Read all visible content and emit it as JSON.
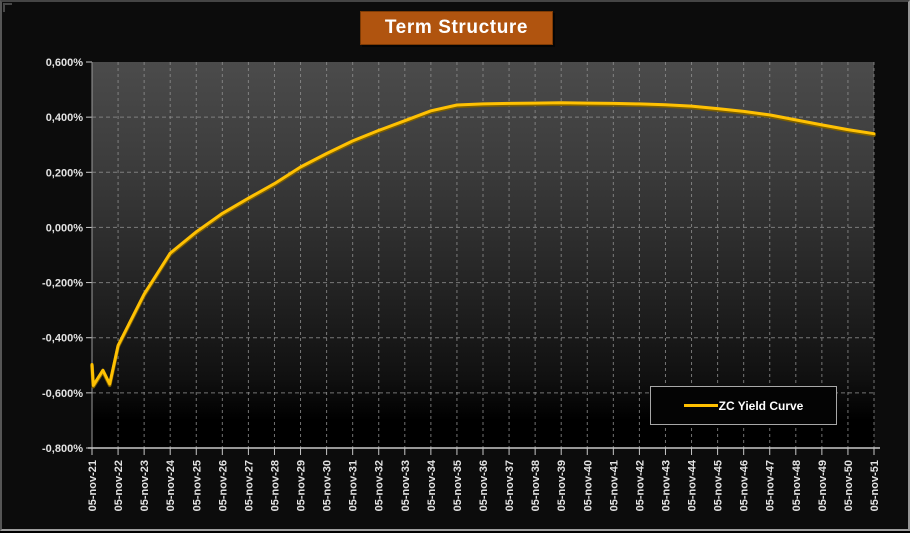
{
  "window": {
    "title": "Term Structure"
  },
  "legend": {
    "label": "ZC Yield Curve"
  },
  "colors": {
    "title_bg": "#b0540f",
    "title_text": "#ffffff",
    "curve": "#ffc103",
    "curve_shade": "#7d5f00",
    "plot_gradient_top": "#4b4b4b",
    "plot_gradient_bottom": "#000000",
    "grid": "#8f8f8f",
    "axis": "#c8c8c8",
    "tick_label": "#e3e3e3",
    "page_bg": "#0c0c0c",
    "legend_bg": "#040404",
    "legend_border": "#a8a8a8"
  },
  "chart_data": {
    "type": "line",
    "title": "Term Structure",
    "xlabel": "",
    "ylabel": "",
    "ylim": [
      -0.8,
      0.6
    ],
    "x_span_years": [
      0,
      30
    ],
    "grid": "dashed, both axes",
    "legend_position": "inside bottom-right",
    "y_ticks": [
      {
        "value": 0.6,
        "label": "0,600%"
      },
      {
        "value": 0.4,
        "label": "0,400%"
      },
      {
        "value": 0.2,
        "label": "0,200%"
      },
      {
        "value": 0.0,
        "label": "0,000%"
      },
      {
        "value": -0.2,
        "label": "-0,200%"
      },
      {
        "value": -0.4,
        "label": "-0,400%"
      },
      {
        "value": -0.6,
        "label": "-0,600%"
      },
      {
        "value": -0.8,
        "label": "-0,800%"
      }
    ],
    "x_tick_labels": [
      "05-nov-21",
      "05-nov-22",
      "05-nov-23",
      "05-nov-24",
      "05-nov-25",
      "05-nov-26",
      "05-nov-27",
      "05-nov-28",
      "05-nov-29",
      "05-nov-30",
      "05-nov-31",
      "05-nov-32",
      "05-nov-33",
      "05-nov-34",
      "05-nov-35",
      "05-nov-36",
      "05-nov-37",
      "05-nov-38",
      "05-nov-39",
      "05-nov-40",
      "05-nov-41",
      "05-nov-42",
      "05-nov-43",
      "05-nov-44",
      "05-nov-45",
      "05-nov-46",
      "05-nov-47",
      "05-nov-48",
      "05-nov-49",
      "05-nov-50",
      "05-nov-51"
    ],
    "series": [
      {
        "name": "ZC Yield Curve",
        "color": "#ffc103",
        "units": "percent",
        "points_years_vs_pct": [
          [
            0,
            -0.497
          ],
          [
            0.05,
            -0.573
          ],
          [
            0.42,
            -0.518
          ],
          [
            0.68,
            -0.568
          ],
          [
            1,
            -0.428
          ],
          [
            2,
            -0.242
          ],
          [
            3,
            -0.093
          ],
          [
            4,
            -0.016
          ],
          [
            5,
            0.051
          ],
          [
            6,
            0.106
          ],
          [
            7,
            0.159
          ],
          [
            8,
            0.219
          ],
          [
            9,
            0.268
          ],
          [
            10,
            0.314
          ],
          [
            11,
            0.352
          ],
          [
            12,
            0.387
          ],
          [
            13,
            0.423
          ],
          [
            14,
            0.444
          ],
          [
            15,
            0.448
          ],
          [
            16,
            0.45
          ],
          [
            17,
            0.451
          ],
          [
            18,
            0.452
          ],
          [
            19,
            0.451
          ],
          [
            20,
            0.45
          ],
          [
            21,
            0.448
          ],
          [
            22,
            0.445
          ],
          [
            23,
            0.44
          ],
          [
            24,
            0.431
          ],
          [
            25,
            0.421
          ],
          [
            26,
            0.408
          ],
          [
            27,
            0.39
          ],
          [
            28,
            0.372
          ],
          [
            29,
            0.355
          ],
          [
            30,
            0.34
          ]
        ]
      }
    ]
  }
}
